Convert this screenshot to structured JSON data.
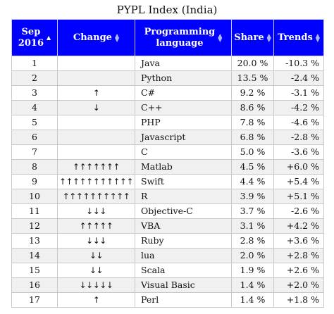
{
  "caption": "PYPL Index (India)",
  "colors": {
    "header_bg": "#0000ff",
    "header_text": "#ffffff",
    "row_alt": "#f0f0f0"
  },
  "sort_icon": "sort-arrows-icon",
  "headers": {
    "rank_line1": "Sep",
    "rank_line2": "2016",
    "change": "Change",
    "lang_line1": "Programming",
    "lang_line2": "language",
    "share": "Share",
    "trends": "Trends"
  },
  "rows": [
    {
      "rank": "1",
      "change": "",
      "lang": "Java",
      "share": "20.0 %",
      "trend": "-10.3 %"
    },
    {
      "rank": "2",
      "change": "",
      "lang": "Python",
      "share": "13.5 %",
      "trend": "-2.4 %"
    },
    {
      "rank": "3",
      "change": "↑",
      "lang": "C#",
      "share": "9.2 %",
      "trend": "-3.1 %"
    },
    {
      "rank": "4",
      "change": "↓",
      "lang": "C++",
      "share": "8.6 %",
      "trend": "-4.2 %"
    },
    {
      "rank": "5",
      "change": "",
      "lang": "PHP",
      "share": "7.8 %",
      "trend": "-4.6 %"
    },
    {
      "rank": "6",
      "change": "",
      "lang": "Javascript",
      "share": "6.8 %",
      "trend": "-2.8 %"
    },
    {
      "rank": "7",
      "change": "",
      "lang": "C",
      "share": "5.0 %",
      "trend": "-3.6 %"
    },
    {
      "rank": "8",
      "change": "↑↑↑↑↑↑↑",
      "lang": "Matlab",
      "share": "4.5 %",
      "trend": "+6.0 %"
    },
    {
      "rank": "9",
      "change": "↑↑↑↑↑↑↑↑↑↑↑",
      "lang": "Swift",
      "share": "4.4 %",
      "trend": "+5.4 %"
    },
    {
      "rank": "10",
      "change": "↑↑↑↑↑↑↑↑↑↑",
      "lang": "R",
      "share": "3.9 %",
      "trend": "+5.1 %"
    },
    {
      "rank": "11",
      "change": "↓↓↓",
      "lang": "Objective-C",
      "share": "3.7 %",
      "trend": "-2.6 %"
    },
    {
      "rank": "12",
      "change": "↑↑↑↑↑",
      "lang": "VBA",
      "share": "3.1 %",
      "trend": "+4.2 %"
    },
    {
      "rank": "13",
      "change": "↓↓↓",
      "lang": "Ruby",
      "share": "2.8 %",
      "trend": "+3.6 %"
    },
    {
      "rank": "14",
      "change": "↓↓",
      "lang": "lua",
      "share": "2.0 %",
      "trend": "+2.8 %"
    },
    {
      "rank": "15",
      "change": "↓↓",
      "lang": "Scala",
      "share": "1.9 %",
      "trend": "+2.6 %"
    },
    {
      "rank": "16",
      "change": "↓↓↓↓↓",
      "lang": "Visual Basic",
      "share": "1.4 %",
      "trend": "+2.0 %"
    },
    {
      "rank": "17",
      "change": "↑",
      "lang": "Perl",
      "share": "1.4 %",
      "trend": "+1.8 %"
    }
  ]
}
